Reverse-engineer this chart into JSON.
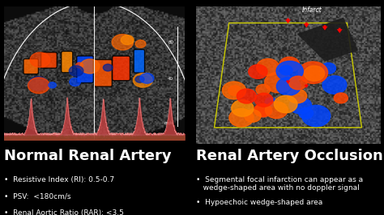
{
  "bg_color": "#000000",
  "title_left": "Normal Renal Artery",
  "title_right": "Renal Artery Occlusion",
  "title_fontsize": 13,
  "bullets_left": [
    "Resistive Index (RI): 0.5-0.7",
    "PSV:  <180cm/s",
    "Renal Aortic Ratio (RAR): <3.5"
  ],
  "bullets_right": [
    "Segmental focal infarction can appear as a\n   wedge-shaped area with no doppler signal",
    "Hypoechoic wedge-shaped area"
  ],
  "bullet_fontsize": 6.5,
  "text_color": "#ffffff",
  "infarct_label": "Infarct"
}
